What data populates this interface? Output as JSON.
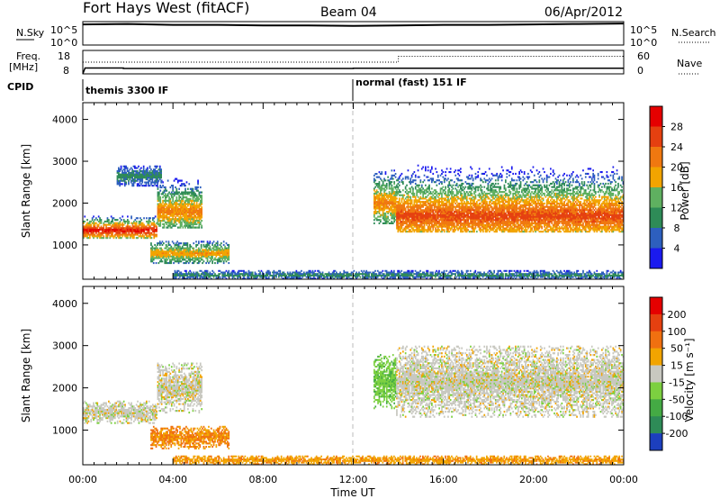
{
  "header": {
    "station": "Fort Hays West (fitACF)",
    "beam": "Beam 04",
    "date": "06/Apr/2012"
  },
  "noise_panel": {
    "left_label": "N.Sky",
    "left_ticks": [
      "10^5",
      "10^0"
    ],
    "right_ticks": [
      "10^5",
      "10^0"
    ],
    "right_label": "N.Search"
  },
  "freq_panel": {
    "left_label_1": "Freq.",
    "left_label_2": "[MHz]",
    "left_ticks": [
      "18",
      "8"
    ],
    "right_ticks": [
      "60",
      "0"
    ],
    "right_label": "Nave"
  },
  "cpid_panel": {
    "label": "CPID",
    "segments": [
      {
        "text": "themis 3300 IF",
        "start_hour": 0
      },
      {
        "text": "normal (fast) 151 IF",
        "start_hour": 12
      }
    ]
  },
  "axes": {
    "xlabel": "Time UT",
    "xticks": [
      "00:00",
      "04:00",
      "08:00",
      "12:00",
      "16:00",
      "20:00",
      "00:00"
    ],
    "ylabel": "Slant Range [km]",
    "yticks": [
      "1000",
      "2000",
      "3000",
      "4000"
    ]
  },
  "colorbars": {
    "power": {
      "label": "Power [dB]",
      "ticks": [
        "4",
        "8",
        "12",
        "16",
        "20",
        "24",
        "28"
      ],
      "colors": [
        "#1a1aee",
        "#2d5fbe",
        "#2e8b57",
        "#5fb060",
        "#f2a400",
        "#f07810",
        "#e54010",
        "#e50000"
      ]
    },
    "velocity": {
      "label": "Velocity [m s⁻¹]",
      "ticks": [
        "200",
        "100",
        "50",
        "15",
        "-15",
        "-50",
        "-100",
        "-200"
      ],
      "colors": [
        "#1c3fbe",
        "#2e8b57",
        "#44aa44",
        "#7cd040",
        "#c8c8c0",
        "#f2a400",
        "#f07010",
        "#e54010",
        "#e50000"
      ]
    }
  },
  "chart_data": [
    {
      "type": "line",
      "title": "N.Sky noise",
      "x_range": [
        0,
        24
      ],
      "ylim_log10": [
        0,
        5
      ],
      "series": [
        {
          "name": "N.Sky",
          "x": [
            0,
            2,
            4,
            6,
            8,
            10,
            12,
            14,
            16,
            18,
            20,
            22,
            24
          ],
          "y_log10": [
            4.4,
            4.5,
            4.3,
            4.3,
            4.2,
            4.2,
            4.1,
            4.2,
            4.3,
            4.3,
            4.4,
            4.5,
            4.6
          ]
        }
      ]
    },
    {
      "type": "line",
      "title": "Frequency / Nave",
      "x_range": [
        0,
        24
      ],
      "ylim_freq_mhz": [
        8,
        18
      ],
      "ylim_nave": [
        0,
        60
      ],
      "series": [
        {
          "name": "Freq.",
          "x": [
            0,
            0.1,
            1.8,
            1.8,
            12,
            12,
            24
          ],
          "y": [
            8,
            10.5,
            10.5,
            10.3,
            10.3,
            10.4,
            10.4
          ]
        },
        {
          "name": "Nave",
          "x": [
            0,
            12,
            12,
            14,
            14,
            24
          ],
          "y": [
            30,
            30,
            30,
            30,
            45,
            45
          ]
        }
      ]
    },
    {
      "type": "heatmap",
      "title": "Power",
      "x_range": [
        0,
        24
      ],
      "ylim": [
        180,
        4400
      ],
      "zlim": [
        0,
        30
      ],
      "regions": [
        {
          "t0": 0.0,
          "t1": 3.3,
          "r0": 1150,
          "r1": 1700,
          "ridge": 1350,
          "peak_db": 28
        },
        {
          "t0": 3.3,
          "t1": 5.3,
          "r0": 1400,
          "r1": 2600,
          "ridge": 1800,
          "peak_db": 20
        },
        {
          "t0": 3.0,
          "t1": 6.5,
          "r0": 550,
          "r1": 1100,
          "ridge": 800,
          "peak_db": 18
        },
        {
          "t0": 1.5,
          "t1": 3.5,
          "r0": 2400,
          "r1": 2900,
          "ridge": 2650,
          "peak_db": 8
        },
        {
          "t0": 12.9,
          "t1": 13.9,
          "r0": 1500,
          "r1": 2800,
          "ridge": 2000,
          "peak_db": 20
        },
        {
          "t0": 13.9,
          "t1": 24.0,
          "r0": 1300,
          "r1": 3000,
          "ridge": 1700,
          "peak_db": 24
        },
        {
          "t0": 4.0,
          "t1": 24.0,
          "r0": 180,
          "r1": 400,
          "ridge": 280,
          "peak_db": 8
        }
      ]
    },
    {
      "type": "heatmap",
      "title": "Velocity",
      "x_range": [
        0,
        24
      ],
      "ylim": [
        180,
        4400
      ],
      "zlim": [
        -200,
        200
      ],
      "regions": [
        {
          "t0": 0.0,
          "t1": 3.3,
          "r0": 1150,
          "r1": 1700,
          "v": 0
        },
        {
          "t0": 3.3,
          "t1": 5.3,
          "r0": 1400,
          "r1": 2600,
          "v": 0
        },
        {
          "t0": 3.0,
          "t1": 6.5,
          "r0": 550,
          "r1": 1100,
          "v": -50
        },
        {
          "t0": 12.9,
          "t1": 13.9,
          "r0": 1500,
          "r1": 2800,
          "v": 40
        },
        {
          "t0": 13.9,
          "t1": 24.0,
          "r0": 1300,
          "r1": 3000,
          "v": 0
        },
        {
          "t0": 4.0,
          "t1": 24.0,
          "r0": 180,
          "r1": 400,
          "v": -40
        }
      ]
    }
  ]
}
